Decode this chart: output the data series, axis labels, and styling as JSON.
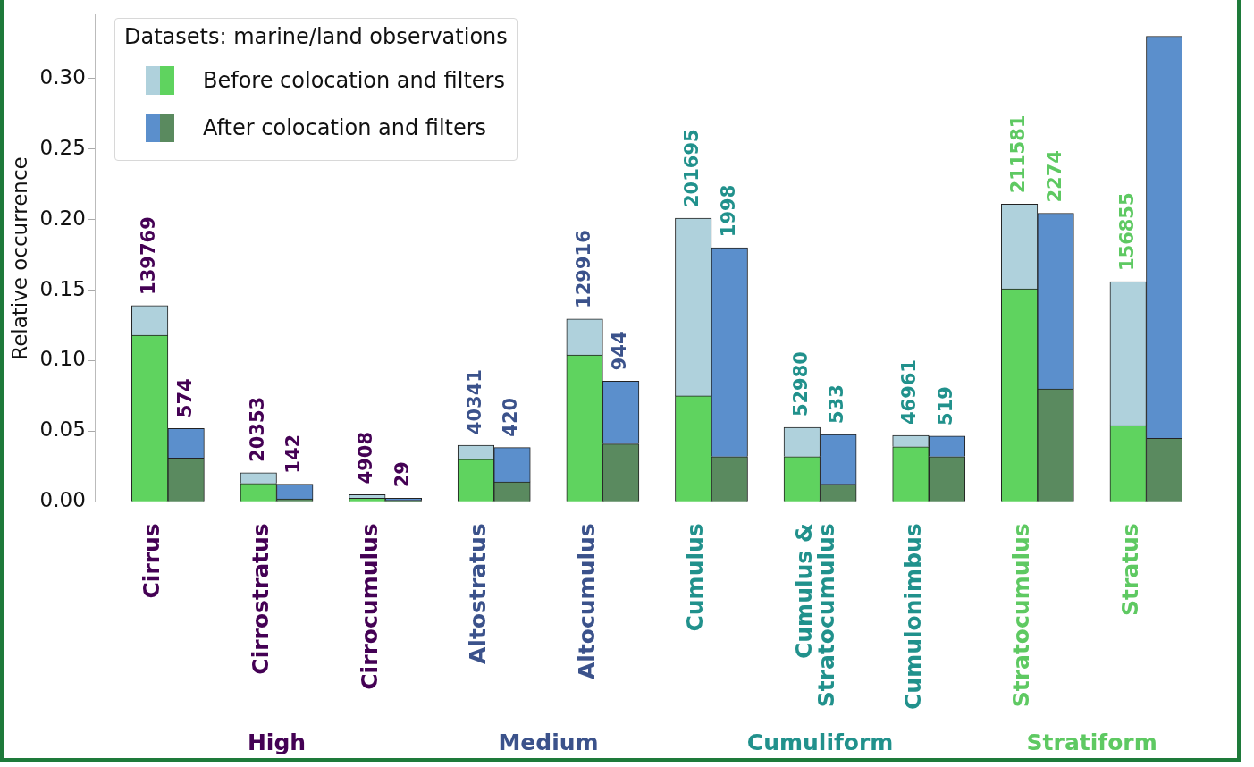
{
  "chart_data": {
    "type": "bar",
    "stacked": true,
    "ylabel": "Relative occurrence",
    "legend_title": "Datasets: marine/land observations",
    "legend": "top left",
    "grid": false,
    "categories": [
      null,
      "Cirrus",
      null,
      null,
      "Cirrostratus",
      null,
      null,
      "Cirrocumulus",
      null,
      null,
      "Altostratus",
      null,
      null,
      "Altocumulus",
      null,
      null,
      "Cumulus",
      null,
      null,
      "Cumulus & Stratocumulus",
      null,
      null,
      "Cumulonimbus",
      null,
      null,
      "Stratocumulus",
      null,
      null,
      "Stratus",
      null
    ],
    "series": [
      {
        "name": "Before colocation and filters",
        "color": "#5fd35f",
        "values": [
          null,
          0.118,
          null,
          null,
          0.013,
          null,
          null,
          0.0025,
          null,
          null,
          0.03,
          null,
          null,
          0.104,
          null,
          null,
          0.075,
          null,
          null,
          0.032,
          null,
          null,
          0.039,
          null,
          null,
          0.151,
          null,
          null,
          0.054,
          null
        ]
      },
      {
        "color": "#afd1dc",
        "values": [
          null,
          0.021,
          null,
          null,
          0.0075,
          null,
          null,
          0.0025,
          null,
          null,
          0.01,
          null,
          null,
          0.0255,
          null,
          null,
          0.126,
          null,
          null,
          0.0207,
          null,
          null,
          0.008,
          null,
          null,
          0.06,
          null,
          null,
          0.102,
          null
        ]
      },
      {
        "name": "After colocation and filters",
        "color": "#5a8a5f",
        "values": [
          null,
          null,
          0.031,
          null,
          null,
          0.002,
          null,
          null,
          0.001,
          null,
          null,
          0.014,
          null,
          null,
          0.041,
          null,
          null,
          0.032,
          null,
          null,
          0.0124,
          null,
          null,
          0.032,
          null,
          null,
          0.08,
          null,
          null,
          0.045
        ]
      },
      {
        "color": "#5b8fcc",
        "values": [
          null,
          null,
          0.021,
          null,
          null,
          0.0104,
          null,
          null,
          0.0015,
          null,
          null,
          0.0244,
          null,
          null,
          0.0445,
          null,
          null,
          0.148,
          null,
          null,
          0.0353,
          null,
          null,
          0.0145,
          null,
          null,
          0.1245,
          null,
          null,
          0.285
        ]
      }
    ],
    "ylim": [
      0,
      0.345
    ],
    "yticks": [
      {
        "value": 0,
        "label": "0.00"
      },
      {
        "value": 0.05,
        "label": "0.05"
      },
      {
        "value": 0.1,
        "label": "0.10"
      },
      {
        "value": 0.15,
        "label": "0.15"
      },
      {
        "value": 0.2,
        "label": "0.20"
      },
      {
        "value": 0.25,
        "label": "0.25"
      },
      {
        "value": 0.3,
        "label": "0.30"
      }
    ],
    "annotations": [
      "High",
      "Medium",
      "Cumuliform",
      "Stratiform",
      {
        "text": "139769",
        "x": "Cirrus",
        "y": 0.139
      },
      {
        "text": "574",
        "y": 0.052
      },
      {
        "text": "20353",
        "x": "Cirrostratus",
        "y": 0.0205
      },
      {
        "text": "142",
        "y": 0.0124
      },
      {
        "text": "4908",
        "x": "Cirrocumulus",
        "y": 0.005
      },
      {
        "text": "29",
        "y": 0.0025
      },
      {
        "text": "40341",
        "x": "Altostratus",
        "y": 0.04
      },
      {
        "text": "420",
        "y": 0.0384
      },
      {
        "text": "129916",
        "x": "Altocumulus",
        "y": 0.1295
      },
      {
        "text": "944",
        "y": 0.0855
      },
      {
        "text": "201695",
        "x": "Cumulus",
        "y": 0.201
      },
      {
        "text": "1998",
        "y": 0.18
      },
      {
        "text": "52980",
        "x": "Cumulus & Stratocumulus",
        "y": 0.0527
      },
      {
        "text": "533",
        "y": 0.0477
      },
      {
        "text": "46961",
        "x": "Cumulonimbus",
        "y": 0.047
      },
      {
        "text": "519",
        "y": 0.0465
      },
      {
        "text": "211581",
        "x": "Stratocumulus",
        "y": 0.211
      },
      {
        "text": "2274",
        "y": 0.2045
      },
      {
        "text": "156855",
        "x": "Stratus",
        "y": 0.156
      }
    ]
  }
}
